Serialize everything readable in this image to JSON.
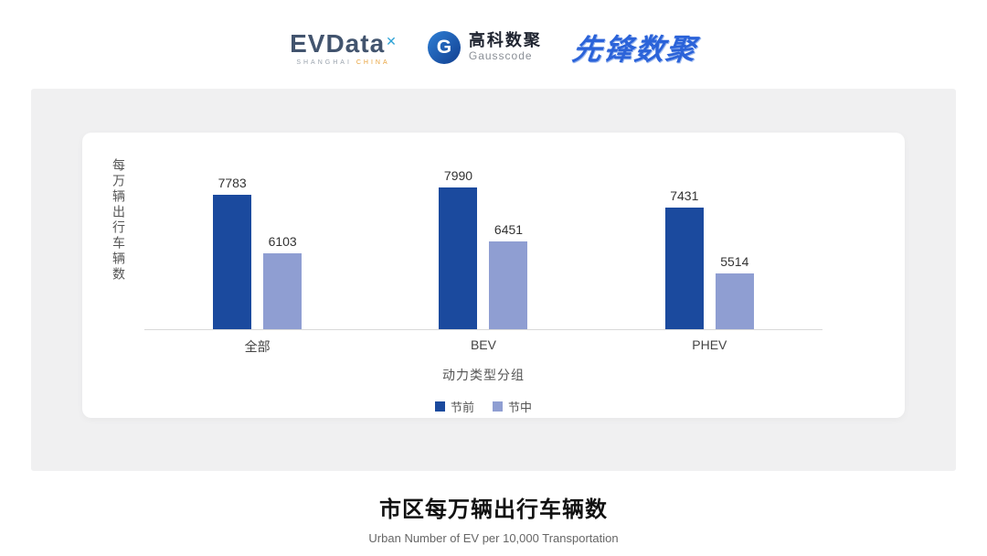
{
  "header": {
    "evdata": {
      "name": "EVData",
      "mark": "✕",
      "sub_left": "SHANGHAI",
      "sub_right": "CHINA"
    },
    "gausscode": {
      "icon_letter": "G",
      "cn": "高科数聚",
      "en": "Gausscode"
    },
    "pioneer": "先锋数聚"
  },
  "chart_data": {
    "type": "bar",
    "categories": [
      "全部",
      "BEV",
      "PHEV"
    ],
    "series": [
      {
        "name": "节前",
        "values": [
          7783,
          7990,
          7431
        ],
        "color": "#1b4a9e"
      },
      {
        "name": "节中",
        "values": [
          6103,
          6451,
          5514
        ],
        "color": "#8f9ed2"
      }
    ],
    "ylabel": "每万辆出行车辆数",
    "xlabel": "动力类型分组",
    "ylim": [
      3900,
      8400
    ],
    "grid": false,
    "legend_position": "bottom"
  },
  "footer": {
    "title": "市区每万辆出行车辆数",
    "subtitle": "Urban Number of EV per 10,000 Transportation"
  }
}
